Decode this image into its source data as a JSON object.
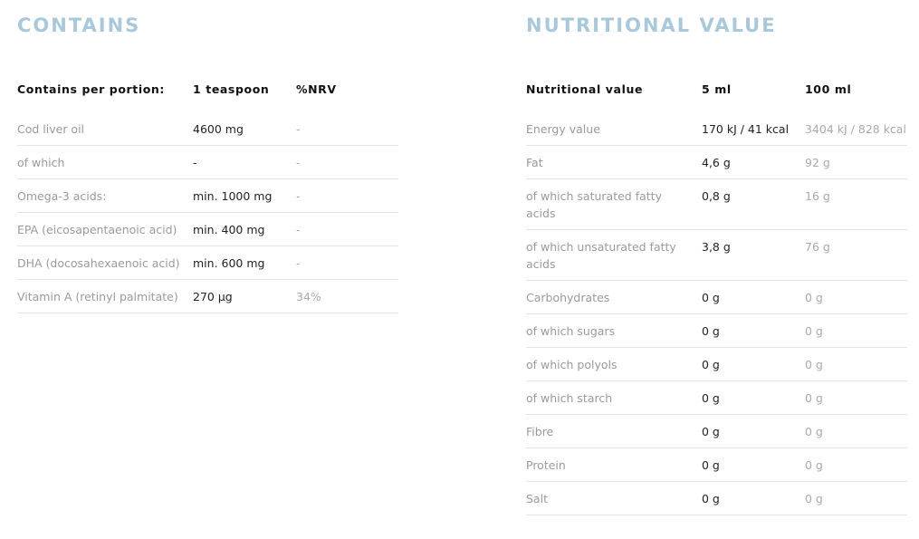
{
  "contains": {
    "title": "CONTAINS",
    "headers": [
      "Contains per portion:",
      "1 teaspoon",
      "%NRV"
    ],
    "rows": [
      [
        "Cod liver oil",
        "4600 mg",
        "-"
      ],
      [
        "of which",
        "-",
        "-"
      ],
      [
        "Omega-3 acids:",
        "min. 1000 mg",
        "-"
      ],
      [
        "EPA (eicosapentaenoic acid)",
        "min. 400 mg",
        "-"
      ],
      [
        "DHA (docosahexaenoic acid)",
        "min. 600 mg",
        "-"
      ],
      [
        "Vitamin A (retinyl palmitate)",
        "270 µg",
        "34%"
      ]
    ]
  },
  "nutrition": {
    "title": "NUTRITIONAL VALUE",
    "headers": [
      "Nutritional value",
      "5 ml",
      "100 ml"
    ],
    "rows": [
      [
        "Energy value",
        "170 kJ / 41 kcal",
        "3404 kJ / 828 kcal"
      ],
      [
        "Fat",
        "4,6 g",
        "92 g"
      ],
      [
        "of which saturated fatty acids",
        "0,8 g",
        "16 g"
      ],
      [
        "of which unsaturated fatty acids",
        "3,8 g",
        "76 g"
      ],
      [
        "Carbohydrates",
        "0 g",
        "0 g"
      ],
      [
        "of which sugars",
        "0 g",
        "0 g"
      ],
      [
        "of which polyols",
        "0 g",
        "0 g"
      ],
      [
        "of which starch",
        "0 g",
        "0 g"
      ],
      [
        "Fibre",
        "0 g",
        "0 g"
      ],
      [
        "Protein",
        "0 g",
        "0 g"
      ],
      [
        "Salt",
        "0 g",
        "0 g"
      ]
    ]
  },
  "colors": {
    "title": "#a9c8da",
    "label": "#9a9a9a",
    "value": "#222222",
    "divider": "#e4e4e4"
  }
}
